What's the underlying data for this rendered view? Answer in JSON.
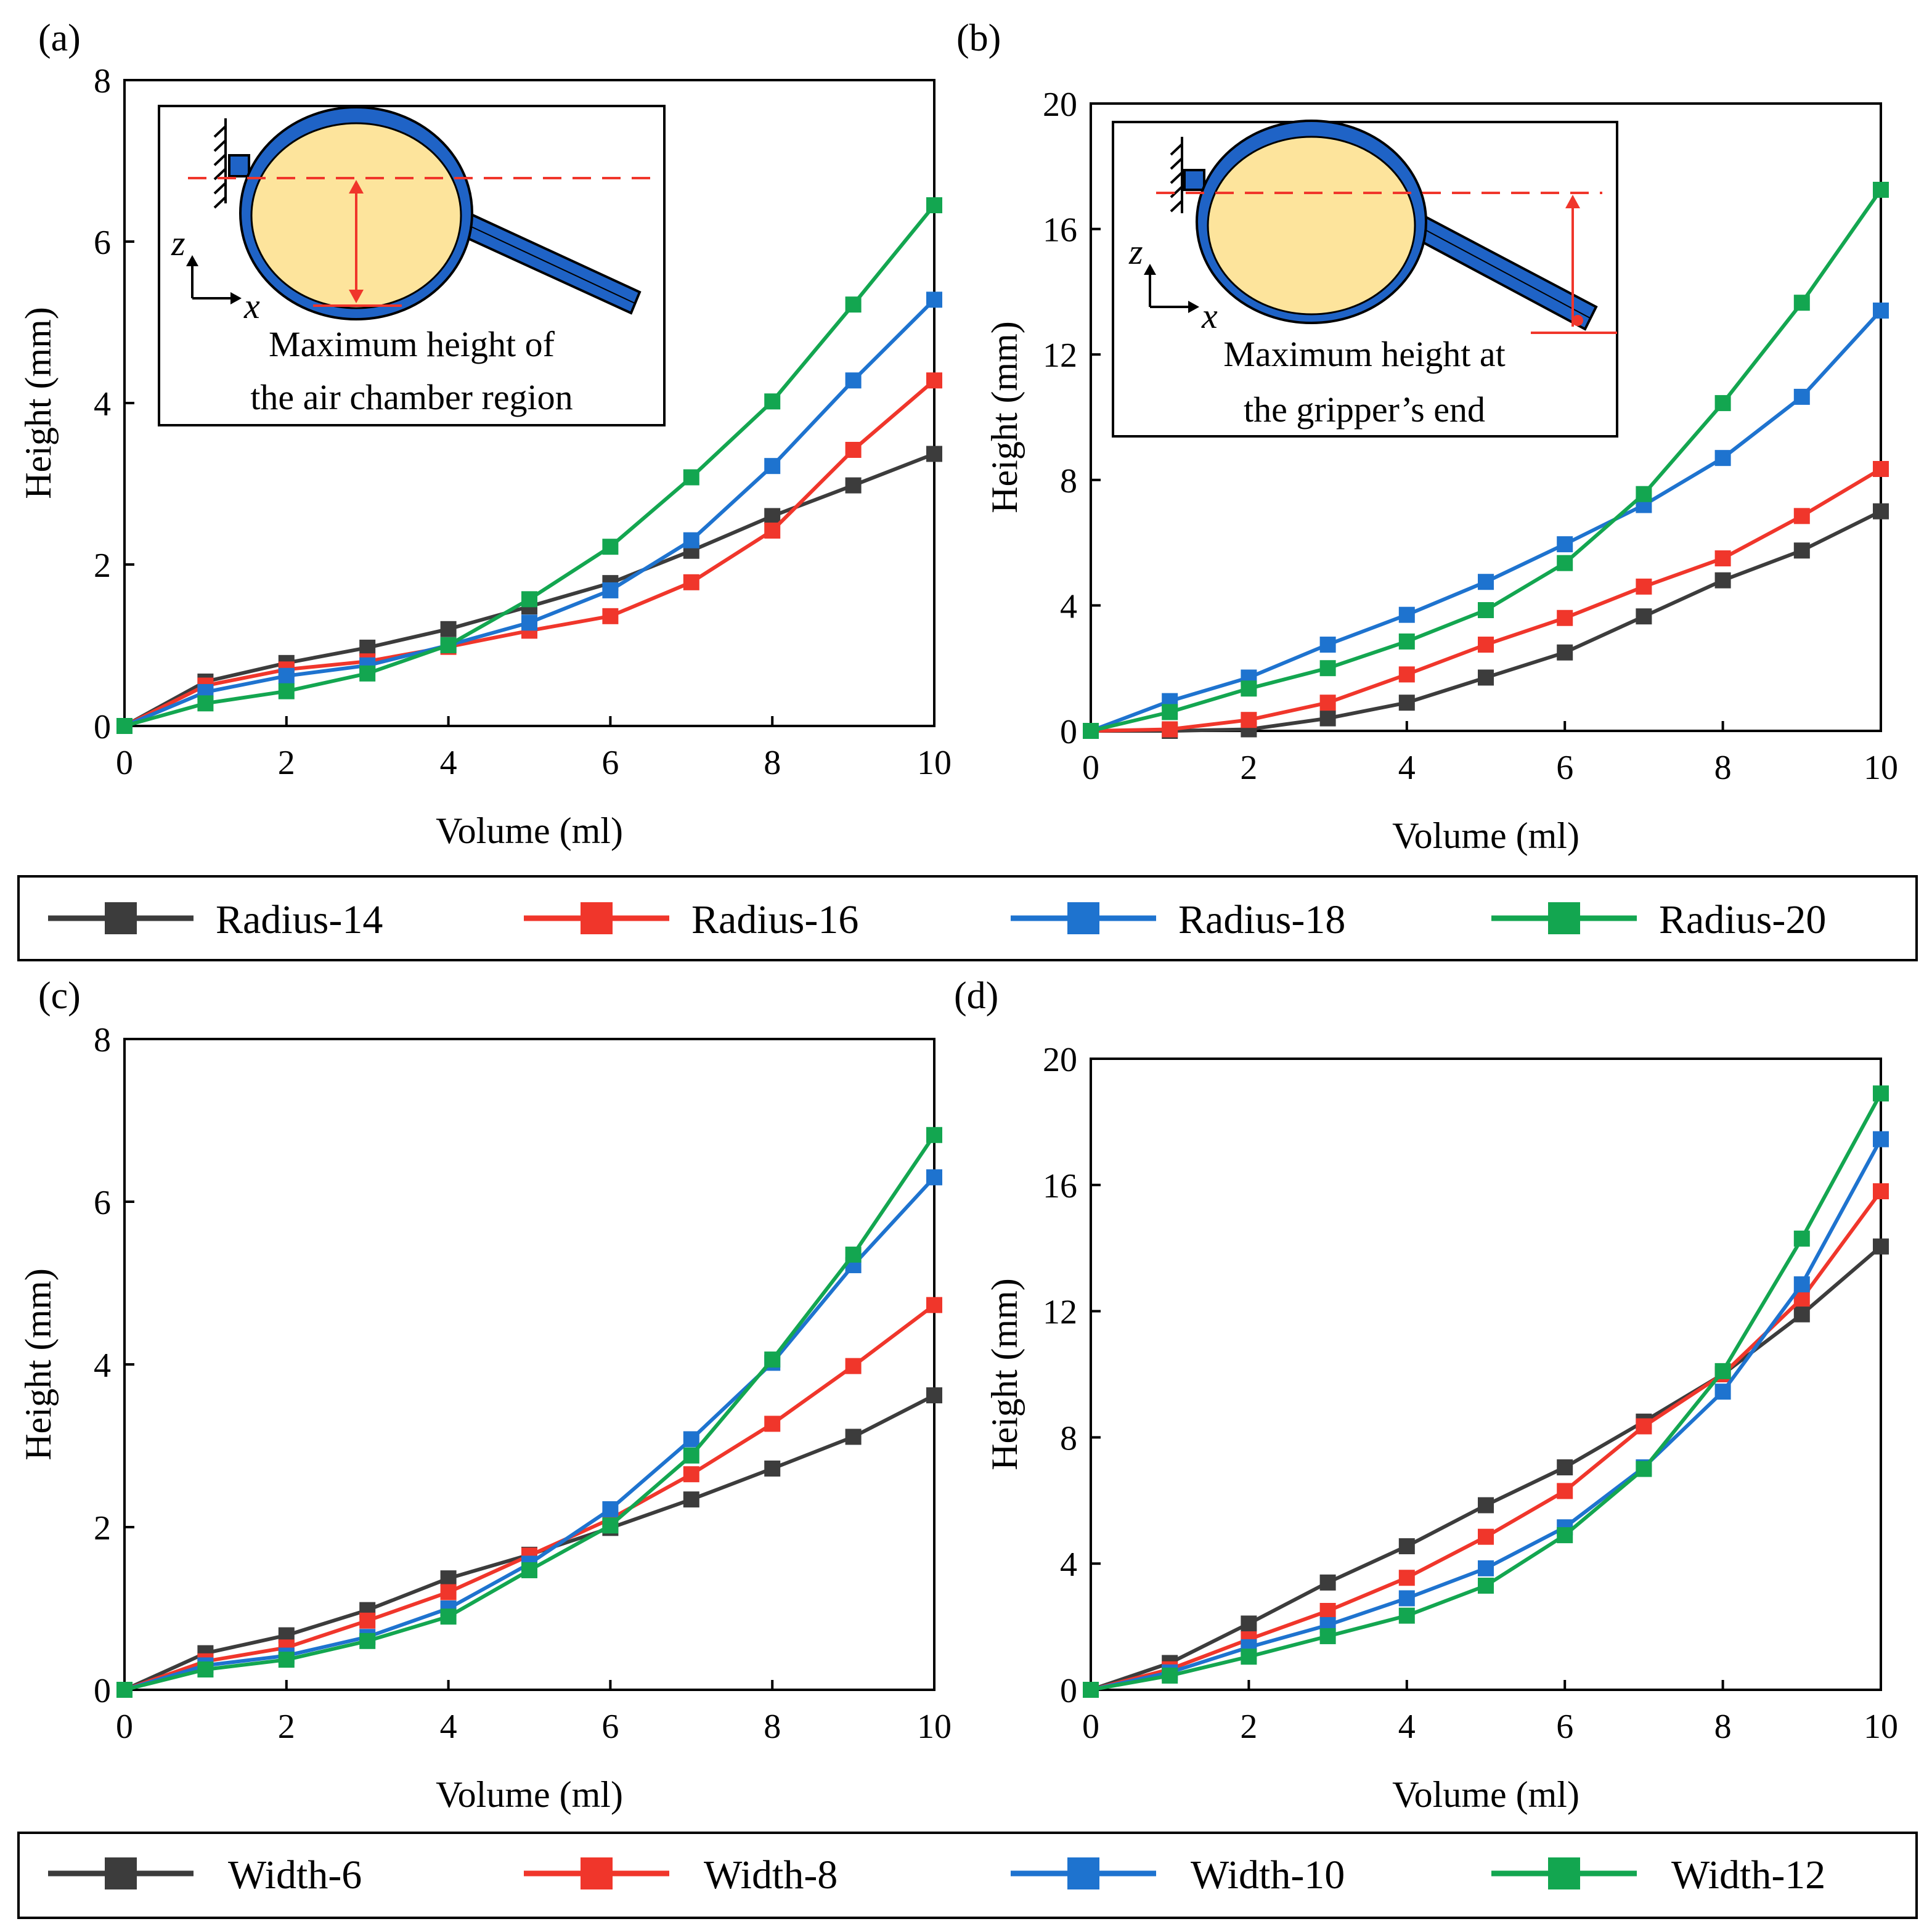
{
  "colors": {
    "black": "#3c3c3c",
    "red": "#f0362b",
    "blue": "#1e73cf",
    "green": "#13a650",
    "chamber_fill": "#fde49c",
    "gripper_blue": "#1f63c6"
  },
  "legends": [
    {
      "entries": [
        "Radius-14",
        "Radius-16",
        "Radius-18",
        "Radius-20"
      ]
    },
    {
      "entries": [
        "Width-6",
        "Width-8",
        "Width-10",
        "Width-12"
      ]
    }
  ],
  "insets": {
    "a": {
      "line1": "Maximum height of",
      "line2": "the air chamber region",
      "axis_z": "z",
      "axis_x": "x"
    },
    "b": {
      "line1": "Maximum height at",
      "line2": "the gripper’s end",
      "axis_z": "z",
      "axis_x": "x"
    }
  },
  "chart_data": [
    {
      "panel": "(a)",
      "type": "line",
      "xlabel": "Volume (ml)",
      "ylabel": "Height (mm)",
      "xlim": [
        0,
        10
      ],
      "ylim": [
        0,
        8
      ],
      "xticks": [
        0,
        2,
        4,
        6,
        8,
        10
      ],
      "yticks": [
        0,
        2,
        4,
        6,
        8
      ],
      "x": [
        0,
        1,
        2,
        3,
        4,
        5,
        6,
        7,
        8,
        9,
        10
      ],
      "series": [
        {
          "name": "Radius-14",
          "color": "#3c3c3c",
          "values": [
            0,
            0.55,
            0.78,
            0.97,
            1.2,
            1.48,
            1.77,
            2.17,
            2.6,
            2.98,
            3.37
          ]
        },
        {
          "name": "Radius-16",
          "color": "#f0362b",
          "values": [
            0,
            0.5,
            0.7,
            0.8,
            0.98,
            1.18,
            1.36,
            1.78,
            2.42,
            3.42,
            4.28
          ]
        },
        {
          "name": "Radius-18",
          "color": "#1e73cf",
          "values": [
            0,
            0.42,
            0.62,
            0.75,
            1.0,
            1.28,
            1.68,
            2.3,
            3.22,
            4.28,
            5.28
          ]
        },
        {
          "name": "Radius-20",
          "color": "#13a650",
          "values": [
            0,
            0.28,
            0.43,
            0.65,
            1.0,
            1.57,
            2.22,
            3.08,
            4.02,
            5.22,
            6.45
          ]
        }
      ]
    },
    {
      "panel": "(b)",
      "type": "line",
      "xlabel": "Volume (ml)",
      "ylabel": "Height (mm)",
      "xlim": [
        0,
        10
      ],
      "ylim": [
        0,
        20
      ],
      "xticks": [
        0,
        2,
        4,
        6,
        8,
        10
      ],
      "yticks": [
        0,
        4,
        8,
        12,
        16,
        20
      ],
      "x": [
        0,
        1,
        2,
        3,
        4,
        5,
        6,
        7,
        8,
        9,
        10
      ],
      "series": [
        {
          "name": "Radius-14",
          "color": "#3c3c3c",
          "values": [
            0,
            0,
            0.05,
            0.4,
            0.9,
            1.7,
            2.5,
            3.65,
            4.8,
            5.75,
            7.0
          ]
        },
        {
          "name": "Radius-16",
          "color": "#f0362b",
          "values": [
            0,
            0.05,
            0.35,
            0.9,
            1.8,
            2.75,
            3.6,
            4.6,
            5.5,
            6.85,
            8.35
          ]
        },
        {
          "name": "Radius-18",
          "color": "#1e73cf",
          "values": [
            0,
            0.95,
            1.7,
            2.75,
            3.7,
            4.75,
            5.95,
            7.2,
            8.7,
            10.65,
            13.4
          ]
        },
        {
          "name": "Radius-20",
          "color": "#13a650",
          "values": [
            0,
            0.6,
            1.35,
            2.0,
            2.85,
            3.85,
            5.35,
            7.55,
            10.45,
            13.65,
            17.25
          ]
        }
      ]
    },
    {
      "panel": "(c)",
      "type": "line",
      "xlabel": "Volume (ml)",
      "ylabel": "Height (mm)",
      "xlim": [
        0,
        10
      ],
      "ylim": [
        0,
        8
      ],
      "xticks": [
        0,
        2,
        4,
        6,
        8,
        10
      ],
      "yticks": [
        0,
        2,
        4,
        6,
        8
      ],
      "x": [
        0,
        1,
        2,
        3,
        4,
        5,
        6,
        7,
        8,
        9,
        10
      ],
      "series": [
        {
          "name": "Width-6",
          "color": "#3c3c3c",
          "values": [
            0,
            0.45,
            0.67,
            0.98,
            1.37,
            1.66,
            1.99,
            2.34,
            2.72,
            3.11,
            3.62
          ]
        },
        {
          "name": "Width-8",
          "color": "#f0362b",
          "values": [
            0,
            0.35,
            0.52,
            0.85,
            1.2,
            1.65,
            2.1,
            2.65,
            3.27,
            3.98,
            4.73
          ]
        },
        {
          "name": "Width-10",
          "color": "#1e73cf",
          "values": [
            0,
            0.3,
            0.42,
            0.65,
            1.0,
            1.55,
            2.22,
            3.08,
            4.02,
            5.22,
            6.3
          ]
        },
        {
          "name": "Width-12",
          "color": "#13a650",
          "values": [
            0,
            0.25,
            0.37,
            0.6,
            0.9,
            1.47,
            2.02,
            2.88,
            4.06,
            5.35,
            6.82
          ]
        }
      ]
    },
    {
      "panel": "(d)",
      "type": "line",
      "xlabel": "Volume (ml)",
      "ylabel": "Height (mm)",
      "xlim": [
        0,
        10
      ],
      "ylim": [
        0,
        20
      ],
      "xticks": [
        0,
        2,
        4,
        6,
        8,
        10
      ],
      "yticks": [
        0,
        4,
        8,
        12,
        16,
        20
      ],
      "x": [
        0,
        1,
        2,
        3,
        4,
        5,
        6,
        7,
        8,
        9,
        10
      ],
      "series": [
        {
          "name": "Width-6",
          "color": "#3c3c3c",
          "values": [
            0,
            0.85,
            2.1,
            3.4,
            4.55,
            5.85,
            7.05,
            8.5,
            10.0,
            11.9,
            14.05
          ]
        },
        {
          "name": "Width-8",
          "color": "#f0362b",
          "values": [
            0,
            0.65,
            1.6,
            2.5,
            3.55,
            4.85,
            6.3,
            8.35,
            10.0,
            12.4,
            15.8
          ]
        },
        {
          "name": "Width-10",
          "color": "#1e73cf",
          "values": [
            0,
            0.55,
            1.35,
            2.05,
            2.9,
            3.85,
            5.15,
            7.05,
            9.45,
            12.85,
            17.45
          ]
        },
        {
          "name": "Width-12",
          "color": "#13a650",
          "values": [
            0,
            0.45,
            1.05,
            1.7,
            2.35,
            3.3,
            4.9,
            7.0,
            10.1,
            14.3,
            18.9
          ]
        }
      ]
    }
  ]
}
